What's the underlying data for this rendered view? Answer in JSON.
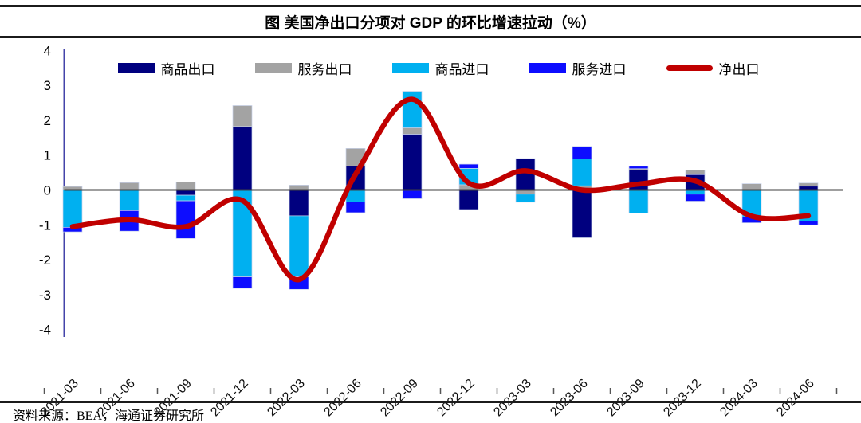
{
  "figure": {
    "title": "图 美国净出口分项对 GDP 的环比增速拉动（%）",
    "source_note": "资料来源：BEA，海通证券研究所"
  },
  "chart_data": {
    "type": "bar",
    "subtype": "stacked-bars-with-line-overlay",
    "title": "图 美国净出口分项对 GDP 的环比增速拉动（%）",
    "xlabel": "",
    "ylabel": "",
    "ylim": [
      -4,
      4
    ],
    "yticks": [
      4,
      3,
      2,
      1,
      0,
      -1,
      -2,
      -3,
      -4
    ],
    "grid": false,
    "legend_position": "top",
    "categories": [
      "2021-03",
      "2021-06",
      "2021-09",
      "2021-12",
      "2022-03",
      "2022-06",
      "2022-09",
      "2022-12",
      "2023-03",
      "2023-06",
      "2023-09",
      "2023-12",
      "2024-03",
      "2024-06"
    ],
    "series": [
      {
        "name": "商品出口",
        "type": "bar",
        "color": "#00007F",
        "values": [
          0,
          0,
          -0.15,
          1.82,
          -0.74,
          0.69,
          1.6,
          -0.56,
          0.9,
          -1.37,
          0.57,
          0.44,
          0,
          0.11
        ]
      },
      {
        "name": "服务出口",
        "type": "bar",
        "color": "#A3A3A3",
        "values": [
          0.1,
          0.21,
          0.23,
          0.6,
          0.14,
          0.5,
          0.18,
          0.15,
          -0.12,
          0.12,
          0.04,
          0.13,
          0.18,
          0.09
        ]
      },
      {
        "name": "商品进口",
        "type": "bar",
        "color": "#00B0F0",
        "values": [
          -1.07,
          -0.59,
          -0.16,
          -2.49,
          -1.75,
          -0.34,
          1.05,
          0.47,
          -0.23,
          0.77,
          -0.66,
          -0.12,
          -0.77,
          -0.89
        ]
      },
      {
        "name": "服务进口",
        "type": "bar",
        "color": "#0D0DFF",
        "values": [
          -0.13,
          -0.59,
          -1.08,
          -0.33,
          -0.36,
          -0.31,
          -0.25,
          0.12,
          0,
          0.36,
          0.07,
          -0.2,
          -0.17,
          -0.11
        ]
      },
      {
        "name": "净出口",
        "type": "line",
        "color": "#C00000",
        "values": [
          -1.05,
          -0.85,
          -1.05,
          -0.3,
          -2.57,
          0.45,
          2.6,
          0.2,
          0.55,
          0.0,
          0.17,
          0.26,
          -0.75,
          -0.74
        ]
      }
    ],
    "axis_colors": {
      "y_axis_line": "#4444AA",
      "zero_line": "#3F3F3F"
    }
  }
}
